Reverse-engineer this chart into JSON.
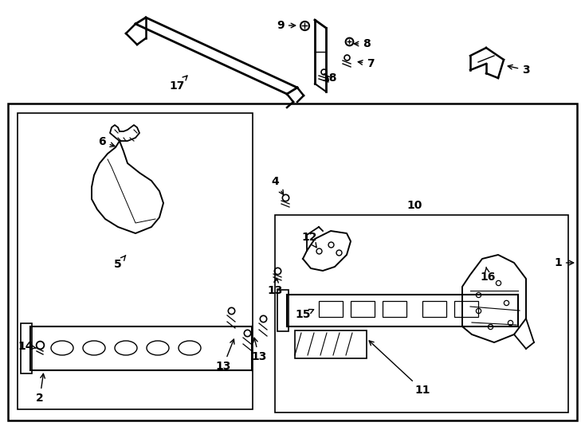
{
  "bg_color": "#ffffff",
  "line_color": "#000000",
  "label_color": "#000000"
}
